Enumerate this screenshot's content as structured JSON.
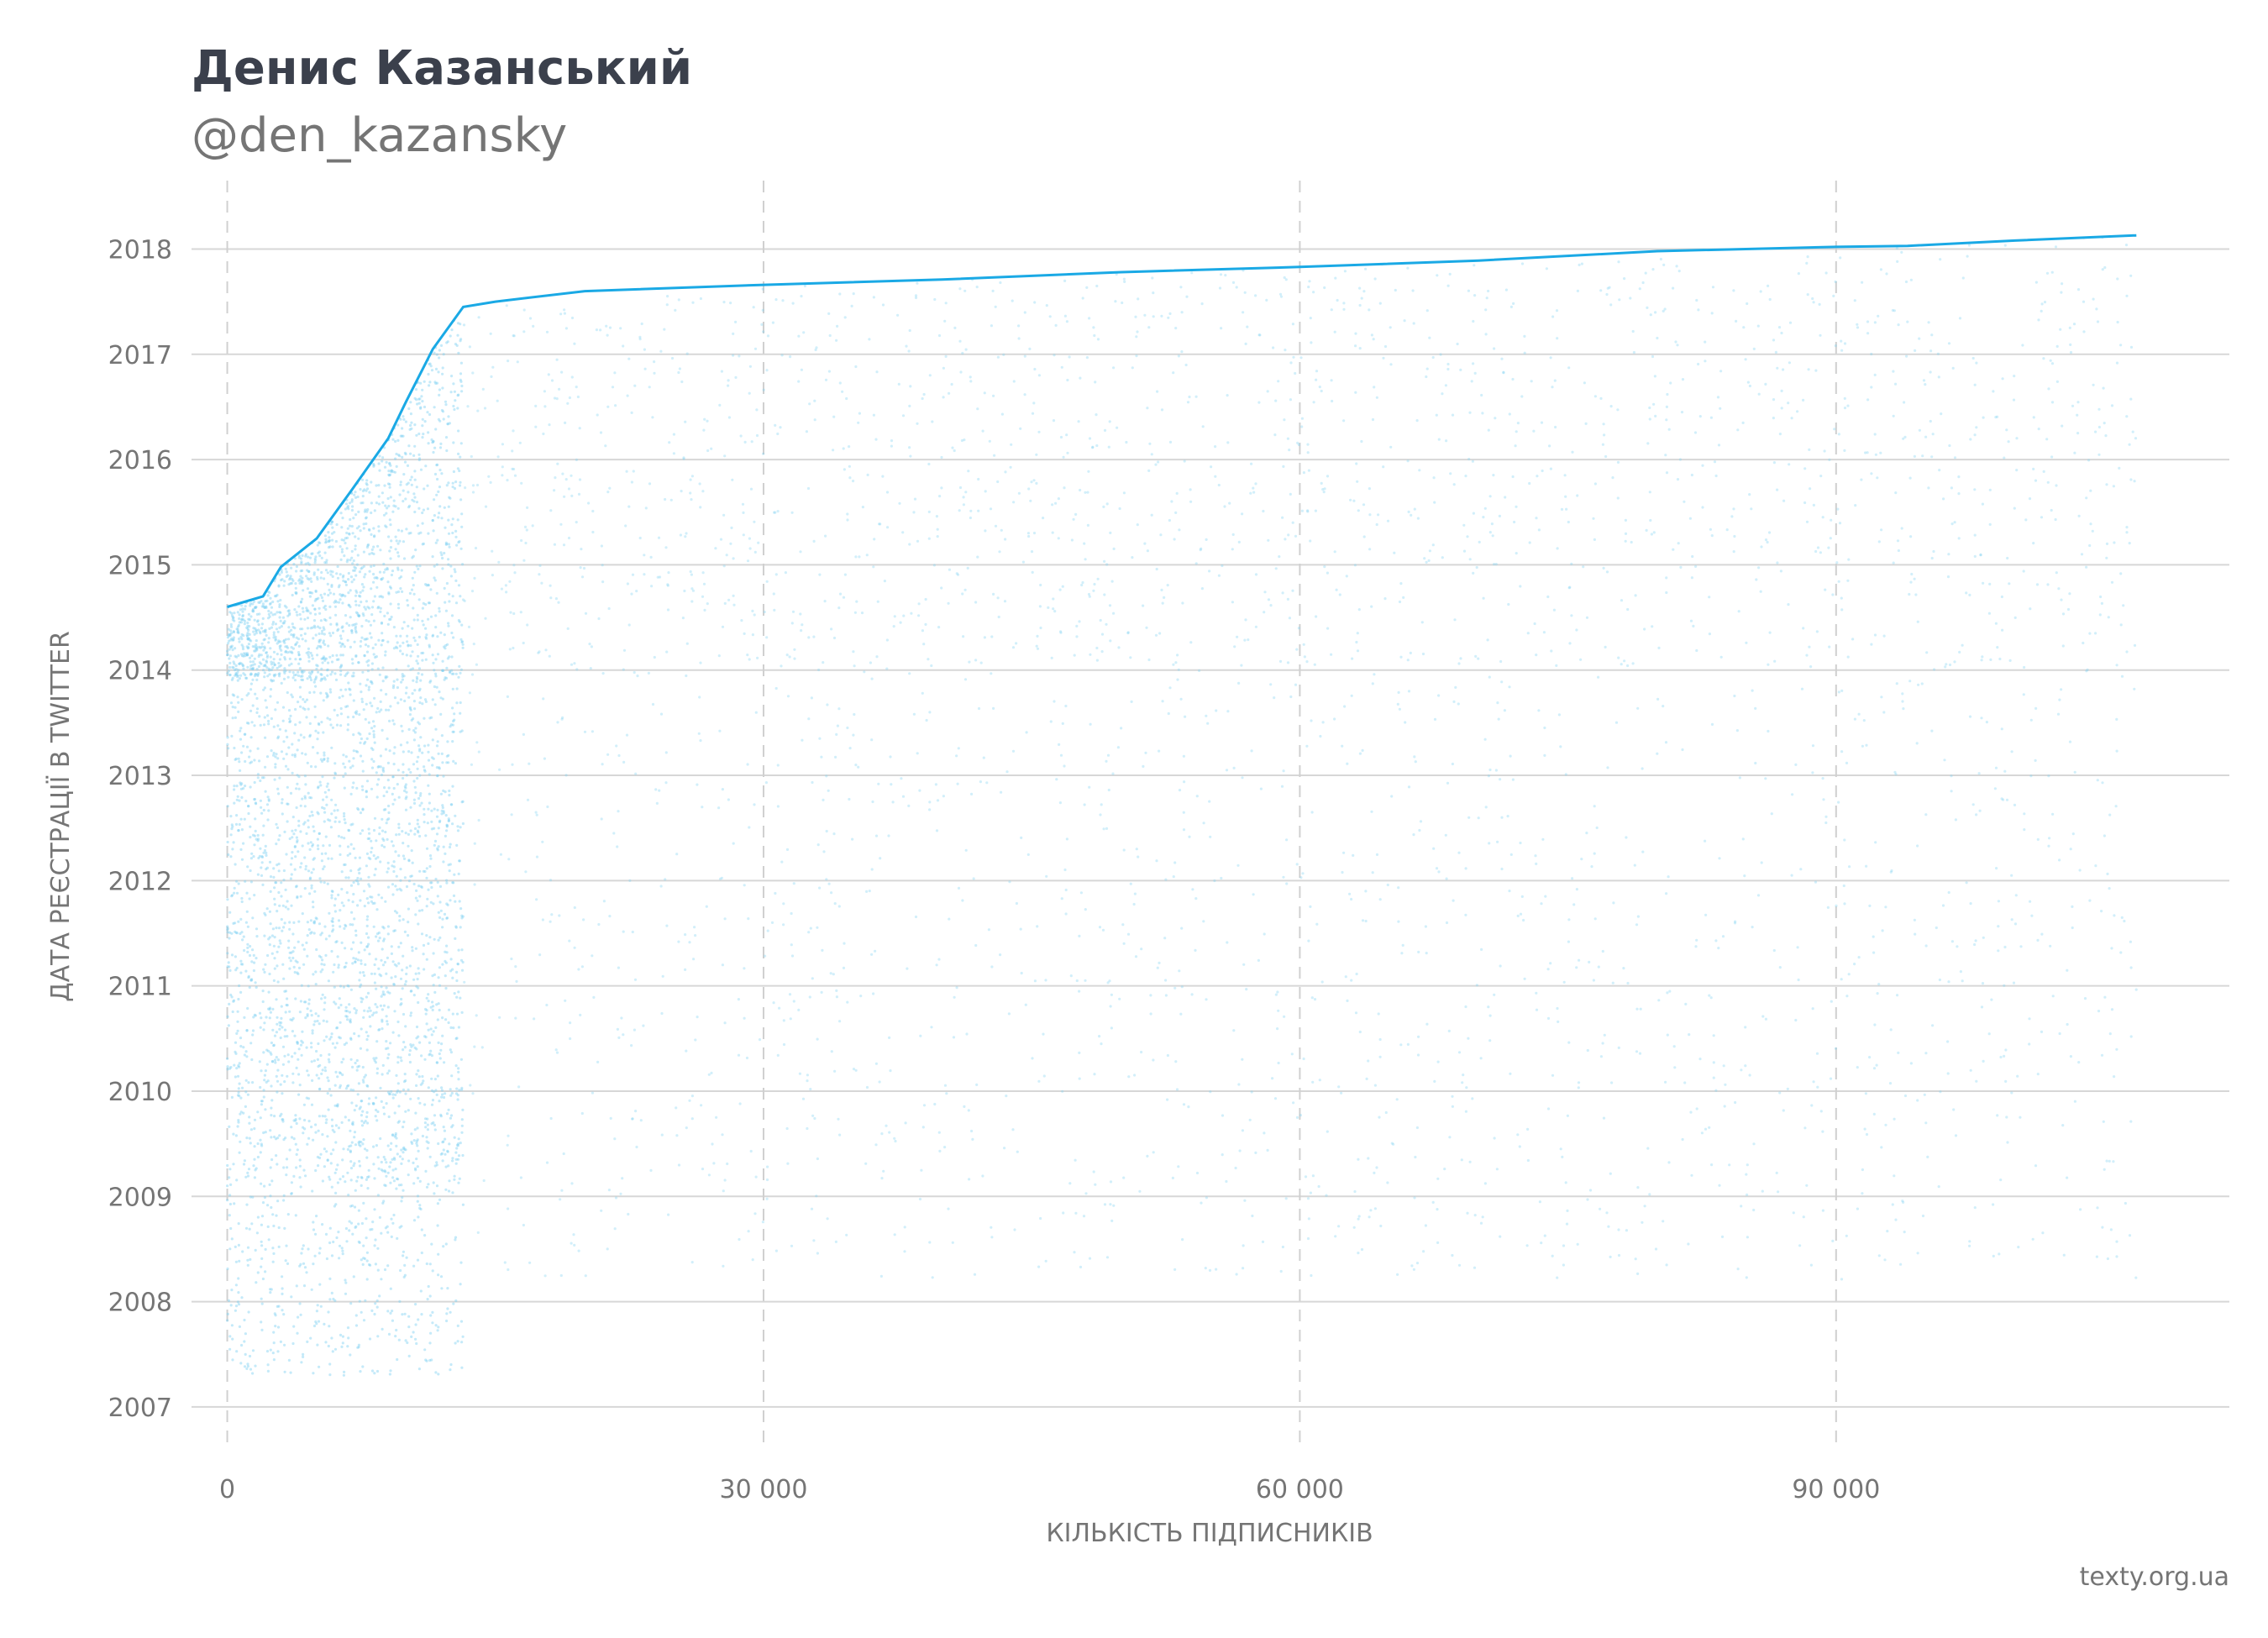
{
  "chart_data": {
    "type": "scatter",
    "title": "Денис Казанський",
    "subtitle": "@den_kazansky",
    "xlabel": "КІЛЬКІСТЬ ПІДПИСНИКІВ",
    "ylabel": "ДАТА РЕЄСТРАЦІЇ В TWITTER",
    "xlim": [
      -2000,
      112000
    ],
    "ylim": [
      2006.6,
      2018.65
    ],
    "x_ticks": [
      0,
      30000,
      60000,
      90000
    ],
    "x_tick_labels": [
      "0",
      "30 000",
      "60 000",
      "90 000"
    ],
    "y_ticks": [
      2007,
      2008,
      2009,
      2010,
      2011,
      2012,
      2013,
      2014,
      2015,
      2016,
      2017,
      2018
    ],
    "y_tick_labels": [
      "2007",
      "2008",
      "2009",
      "2010",
      "2011",
      "2012",
      "2013",
      "2014",
      "2015",
      "2016",
      "2017",
      "2018"
    ],
    "grid": {
      "horizontal": true,
      "vertical": "dashed"
    },
    "colors": {
      "points": "#7fd0f2",
      "line": "#1aa9e5",
      "grid": "#d7d7d7"
    },
    "line_series": {
      "x": [
        0,
        2000,
        3000,
        5000,
        7000,
        9000,
        10000,
        11500,
        13200,
        15000,
        20000,
        30000,
        40000,
        50000,
        60000,
        70000,
        80000,
        90000,
        94000,
        100000,
        106800
      ],
      "y": [
        2014.6,
        2014.7,
        2014.98,
        2015.25,
        2015.72,
        2016.2,
        2016.55,
        2017.05,
        2017.45,
        2017.5,
        2017.6,
        2017.66,
        2017.71,
        2017.78,
        2017.83,
        2017.89,
        2017.98,
        2018.02,
        2018.03,
        2018.08,
        2018.13
      ]
    },
    "point_cloud": {
      "description_shown": "scatter of followers by follower index vs. registration date",
      "x_range": [
        0,
        106800
      ],
      "dense_region_x": [
        0,
        13200
      ]
    }
  },
  "source": "texty.org.ua"
}
